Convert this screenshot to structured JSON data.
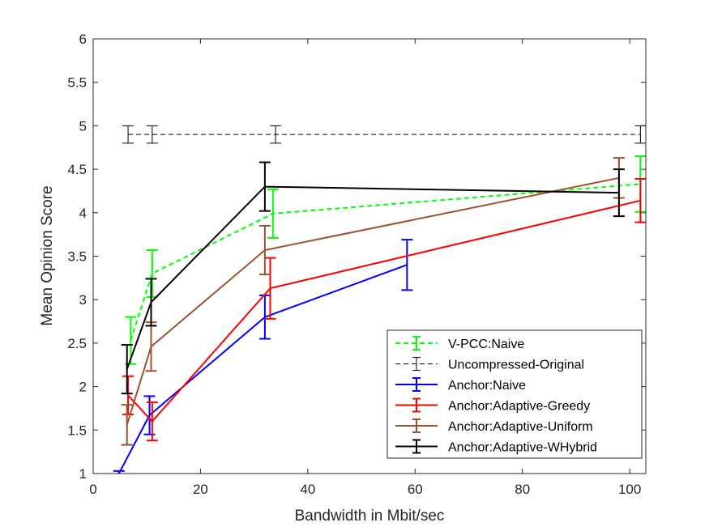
{
  "chart_data": {
    "type": "line",
    "title": "",
    "xlabel": "Bandwidth in Mbit/sec",
    "ylabel": "Mean Opinion Score",
    "xlim": [
      0,
      103
    ],
    "ylim": [
      1,
      6
    ],
    "xticks": [
      0,
      20,
      40,
      60,
      80,
      100
    ],
    "yticks": [
      1,
      1.5,
      2,
      2.5,
      3,
      3.5,
      4,
      4.5,
      5,
      5.5,
      6
    ],
    "xtick_labels": [
      "0",
      "20",
      "40",
      "60",
      "80",
      "100"
    ],
    "ytick_labels": [
      "1",
      "1.5",
      "2",
      "2.5",
      "3",
      "3.5",
      "4",
      "4.5",
      "5",
      "5.5",
      "6"
    ],
    "grid": false,
    "legend_position": "bottom-right",
    "series": [
      {
        "name": "V-PCC:Naive",
        "color": "#00ff00",
        "dash": "dashed",
        "x": [
          7,
          11,
          33.5,
          102
        ],
        "y": [
          2.53,
          3.3,
          3.99,
          4.33
        ],
        "err": [
          0.27,
          0.27,
          0.28,
          0.32
        ]
      },
      {
        "name": "Uncompressed-Original",
        "color": "#000000",
        "dash": "thin-dashed",
        "x": [
          6.5,
          11,
          34,
          102
        ],
        "y": [
          4.9,
          4.9,
          4.9,
          4.9
        ],
        "err": [
          0.1,
          0.1,
          0.1,
          0.1
        ]
      },
      {
        "name": "Anchor:Naive",
        "color": "#0000ff",
        "dash": "solid",
        "x": [
          4.8,
          10.5,
          32,
          58.5
        ],
        "y": [
          1.0,
          1.67,
          2.8,
          3.4
        ],
        "err": [
          0.03,
          0.22,
          0.25,
          0.29
        ]
      },
      {
        "name": "Anchor:Adaptive-Greedy",
        "color": "#ff0000",
        "dash": "solid",
        "x": [
          6.5,
          11,
          33,
          102
        ],
        "y": [
          1.9,
          1.6,
          3.13,
          4.14
        ],
        "err": [
          0.22,
          0.22,
          0.35,
          0.25
        ]
      },
      {
        "name": "Anchor:Adaptive-Uniform",
        "color": "#a0522d",
        "dash": "solid",
        "x": [
          6.3,
          10.8,
          32,
          98
        ],
        "y": [
          1.56,
          2.46,
          3.57,
          4.4
        ],
        "err": [
          0.23,
          0.28,
          0.28,
          0.23
        ]
      },
      {
        "name": "Anchor:Adaptive-WHybrid",
        "color": "#000000",
        "dash": "solid",
        "x": [
          6.3,
          10.8,
          32,
          98
        ],
        "y": [
          2.2,
          2.97,
          4.3,
          4.23
        ],
        "err": [
          0.28,
          0.27,
          0.28,
          0.27
        ]
      }
    ]
  }
}
